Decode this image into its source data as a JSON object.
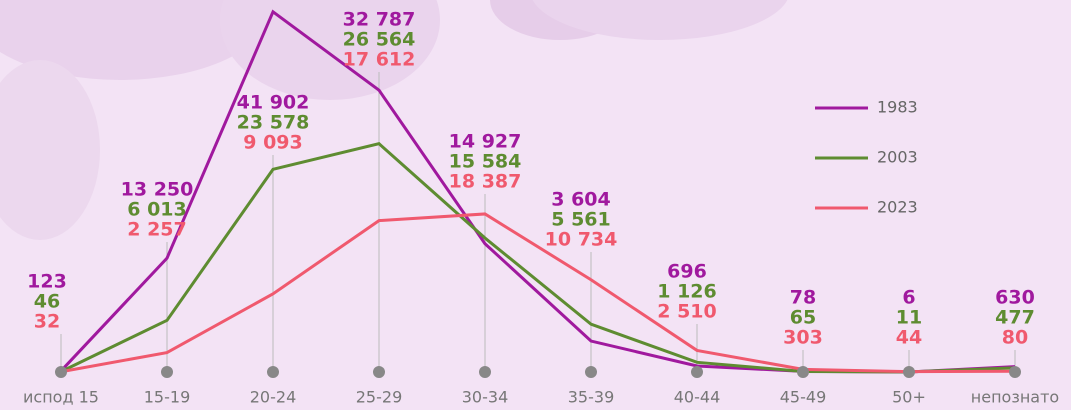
{
  "chart_data": {
    "type": "line",
    "categories": [
      "испод 15",
      "15-19",
      "20-24",
      "25-29",
      "30-34",
      "35-39",
      "40-44",
      "45-49",
      "50+",
      "непознато"
    ],
    "series": [
      {
        "name": "1983",
        "color": "#a0199e",
        "values": [
          123,
          13250,
          41902,
          32787,
          14927,
          3604,
          696,
          78,
          6,
          630
        ],
        "value_labels": [
          "123",
          "13 250",
          "41 902",
          "32 787",
          "14 927",
          "3 604",
          "696",
          "78",
          "6",
          "630"
        ]
      },
      {
        "name": "2003",
        "color": "#5e8c31",
        "values": [
          46,
          6013,
          23578,
          26564,
          15584,
          5561,
          1126,
          65,
          11,
          477
        ],
        "value_labels": [
          "46",
          "6 013",
          "23 578",
          "26 564",
          "15 584",
          "5 561",
          "1 126",
          "65",
          "11",
          "477"
        ]
      },
      {
        "name": "2023",
        "color": "#f0596e",
        "values": [
          32,
          2257,
          9093,
          17612,
          18387,
          10734,
          2510,
          303,
          44,
          80
        ],
        "value_labels": [
          "32",
          "2 257",
          "9 093",
          "17 612",
          "18 387",
          "10 734",
          "2 510",
          "303",
          "44",
          "80"
        ]
      }
    ],
    "ylim": [
      0,
      42000
    ]
  }
}
